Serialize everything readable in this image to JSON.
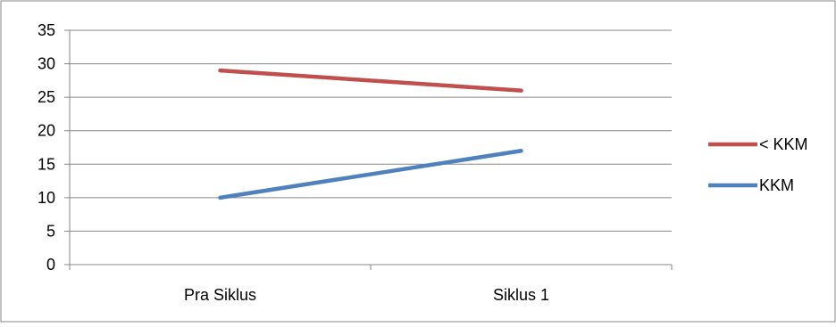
{
  "chart_data": {
    "type": "line",
    "categories": [
      "Pra Siklus",
      "Siklus 1"
    ],
    "series": [
      {
        "name": "< KKM",
        "values": [
          29,
          26
        ],
        "color": "#c0504d"
      },
      {
        "name": "KKM",
        "values": [
          10,
          17
        ],
        "color": "#4f81bd"
      }
    ],
    "ylim": [
      0,
      35
    ],
    "yticks": [
      0,
      5,
      10,
      15,
      20,
      25,
      30,
      35
    ],
    "grid": true,
    "legend_position": "right",
    "title": "",
    "xlabel": "",
    "ylabel": ""
  }
}
